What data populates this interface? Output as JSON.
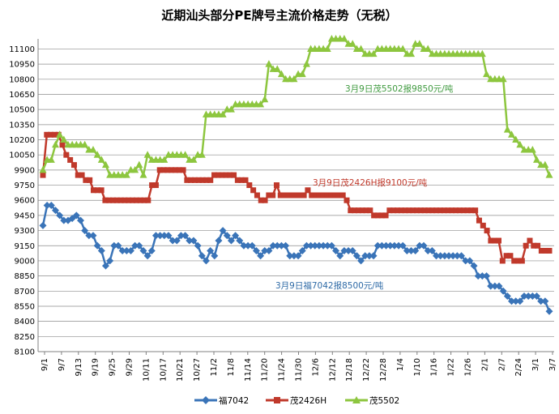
{
  "chart_data": {
    "type": "line",
    "title": "近期汕头部分PE牌号主流价格走势（无税）",
    "ylim": [
      8100,
      11200
    ],
    "y_step": 150,
    "grid": "horizontal",
    "legend_position": "bottom",
    "x_tick_labels": [
      "9/1",
      "9/7",
      "9/13",
      "9/19",
      "9/25",
      "9/29",
      "10/11",
      "10/17",
      "10/21",
      "10/27",
      "11/2",
      "11/8",
      "11/14",
      "11/20",
      "11/24",
      "11/30",
      "12/6",
      "12/12",
      "12/18",
      "12/22",
      "12/28",
      "1/4",
      "1/10",
      "1/16",
      "1/22",
      "1/26",
      "2/1",
      "2/7",
      "2/24",
      "3/1",
      "3/7"
    ],
    "series": [
      {
        "name": "福7042",
        "color": "#3a74b8",
        "marker": "diamond",
        "values": [
          9350,
          9550,
          9550,
          9500,
          9450,
          9400,
          9400,
          9420,
          9450,
          9400,
          9300,
          9250,
          9250,
          9150,
          9100,
          8950,
          9000,
          9150,
          9150,
          9100,
          9100,
          9100,
          9150,
          9150,
          9100,
          9050,
          9100,
          9250,
          9250,
          9250,
          9250,
          9200,
          9200,
          9250,
          9250,
          9200,
          9200,
          9150,
          9050,
          9000,
          9100,
          9050,
          9200,
          9300,
          9250,
          9200,
          9250,
          9200,
          9150,
          9150,
          9150,
          9100,
          9050,
          9100,
          9100,
          9150,
          9150,
          9150,
          9150,
          9050,
          9050,
          9050,
          9100,
          9150,
          9150,
          9150,
          9150,
          9150,
          9150,
          9150,
          9100,
          9050,
          9100,
          9100,
          9100,
          9050,
          9000,
          9050,
          9050,
          9050,
          9150,
          9150,
          9150,
          9150,
          9150,
          9150,
          9150,
          9100,
          9100,
          9100,
          9150,
          9150,
          9100,
          9100,
          9050,
          9050,
          9050,
          9050,
          9050,
          9050,
          9050,
          9000,
          9000,
          8950,
          8850,
          8850,
          8850,
          8750,
          8750,
          8750,
          8700,
          8650,
          8600,
          8600,
          8600,
          8650,
          8650,
          8650,
          8650,
          8600,
          8600,
          8500
        ]
      },
      {
        "name": "茂2426H",
        "color": "#c0392b",
        "marker": "square",
        "values": [
          9850,
          10250,
          10250,
          10250,
          10250,
          10150,
          10050,
          10000,
          9950,
          9850,
          9850,
          9800,
          9800,
          9700,
          9700,
          9700,
          9600,
          9600,
          9600,
          9600,
          9600,
          9600,
          9600,
          9600,
          9600,
          9600,
          9600,
          9600,
          9750,
          9750,
          9900,
          9900,
          9900,
          9900,
          9900,
          9900,
          9900,
          9800,
          9800,
          9800,
          9800,
          9800,
          9800,
          9800,
          9850,
          9850,
          9850,
          9850,
          9850,
          9850,
          9800,
          9800,
          9800,
          9750,
          9700,
          9650,
          9600,
          9600,
          9650,
          9650,
          9750,
          9650,
          9650,
          9650,
          9650,
          9650,
          9650,
          9650,
          9700,
          9650,
          9650,
          9650,
          9650,
          9650,
          9650,
          9650,
          9650,
          9650,
          9600,
          9500,
          9500,
          9500,
          9500,
          9500,
          9500,
          9450,
          9450,
          9450,
          9450,
          9500,
          9500,
          9500,
          9500,
          9500,
          9500,
          9500,
          9500,
          9500,
          9500,
          9500,
          9500,
          9500,
          9500,
          9500,
          9500,
          9500,
          9500,
          9500,
          9500,
          9500,
          9500,
          9500,
          9400,
          9350,
          9300,
          9200,
          9200,
          9200,
          9000,
          9050,
          9050,
          9000,
          9000,
          9000,
          9150,
          9200,
          9150,
          9150,
          9100,
          9100,
          9100
        ]
      },
      {
        "name": "茂5502",
        "color": "#8dc63f",
        "marker": "triangle",
        "values": [
          9900,
          10000,
          10000,
          10150,
          10250,
          10200,
          10150,
          10150,
          10150,
          10150,
          10150,
          10100,
          10100,
          10050,
          10000,
          9950,
          9850,
          9850,
          9850,
          9850,
          9850,
          9900,
          9900,
          9950,
          9850,
          10050,
          10000,
          10000,
          10000,
          10000,
          10050,
          10050,
          10050,
          10050,
          10050,
          10000,
          10000,
          10050,
          10050,
          10450,
          10450,
          10450,
          10450,
          10450,
          10500,
          10500,
          10550,
          10550,
          10550,
          10550,
          10550,
          10550,
          10550,
          10600,
          10950,
          10900,
          10900,
          10850,
          10800,
          10800,
          10800,
          10850,
          10850,
          10950,
          11100,
          11100,
          11100,
          11100,
          11100,
          11200,
          11200,
          11200,
          11200,
          11150,
          11150,
          11100,
          11100,
          11050,
          11050,
          11050,
          11100,
          11100,
          11100,
          11100,
          11100,
          11100,
          11100,
          11050,
          11050,
          11150,
          11150,
          11100,
          11100,
          11050,
          11050,
          11050,
          11050,
          11050,
          11050,
          11050,
          11050,
          11050,
          11050,
          11050,
          11050,
          11050,
          10850,
          10800,
          10800,
          10800,
          10800,
          10300,
          10250,
          10200,
          10150,
          10100,
          10100,
          10100,
          10000,
          9950,
          9950,
          9850
        ]
      }
    ],
    "annotations": [
      {
        "text": "3月9日茂5502报9850元/吨",
        "series": "茂5502"
      },
      {
        "text": "3月9日茂2426H报9100元/吨",
        "series": "茂2426H"
      },
      {
        "text": "3月9日福7042报8500元/吨",
        "series": "福7042"
      }
    ]
  }
}
